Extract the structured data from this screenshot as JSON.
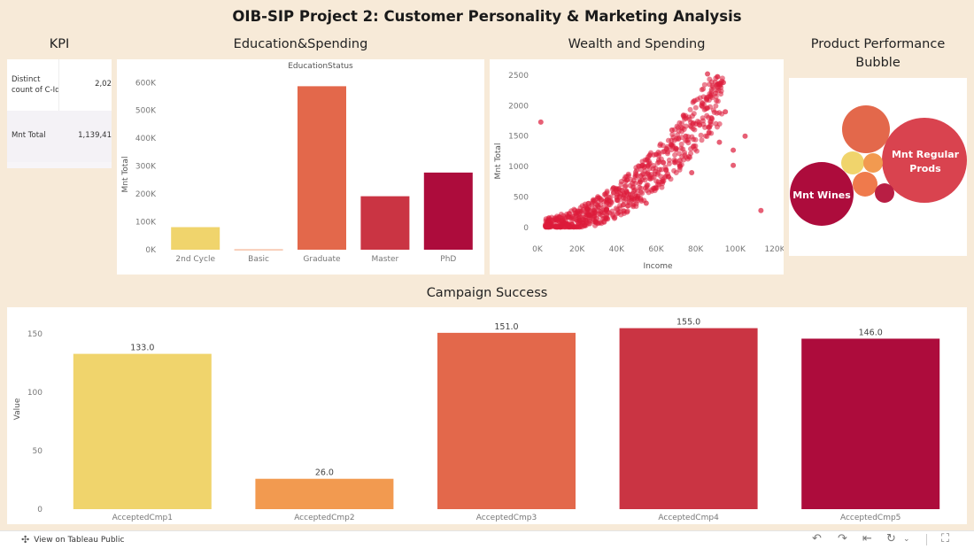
{
  "title": "OIB-SIP Project 2: Customer Personality & Marketing Analysis",
  "sections": {
    "kpi": "KPI",
    "education": "Education&Spending",
    "wealth": "Wealth and Spending",
    "product_line1": "Product Performance",
    "product_line2": "Bubble",
    "campaign": "Campaign Success"
  },
  "kpi": {
    "rows": [
      {
        "label_line1": "Distinct",
        "label_line2": "count of C-Id",
        "value": "2,02"
      },
      {
        "label_line1": "Mnt Total",
        "label_line2": "",
        "value": "1,139,41"
      }
    ]
  },
  "bubble": {
    "labels": {
      "wines": "Mnt Wines",
      "regular_line1": "Mnt Regular",
      "regular_line2": "Prods"
    }
  },
  "footer": {
    "tableau_link": "View on Tableau Public"
  },
  "colors": {
    "background": "#f7ead8",
    "yellow": "#f0d46c",
    "orange": "#f29a50",
    "coral": "#e3684b",
    "red": "#ca3443",
    "crimson": "#ad0c3c"
  },
  "chart_data": [
    {
      "type": "bar",
      "title": "EducationStatus",
      "categories": [
        "2nd Cycle",
        "Basic",
        "Graduate",
        "Master",
        "PhD"
      ],
      "values": [
        81000,
        2000,
        587000,
        192000,
        277000
      ],
      "ylabel": "Mnt Total",
      "yticks": [
        "0K",
        "100K",
        "200K",
        "300K",
        "400K",
        "500K",
        "600K"
      ],
      "ylim": [
        0,
        620000
      ]
    },
    {
      "type": "scatter",
      "xlabel": "Income",
      "ylabel": "Mnt Total",
      "xticks": [
        "0K",
        "20K",
        "40K",
        "60K",
        "80K",
        "100K",
        "120K"
      ],
      "yticks": [
        "0",
        "500",
        "1000",
        "1500",
        "2000",
        "2500"
      ],
      "xlim": [
        0,
        120000
      ],
      "ylim": [
        0,
        2600
      ],
      "points": [
        [
          1700,
          1730
        ],
        [
          105000,
          1500
        ],
        [
          113000,
          280
        ],
        [
          99000,
          1270
        ],
        [
          99000,
          1020
        ],
        [
          86000,
          2520
        ],
        [
          94000,
          2380
        ],
        [
          5000,
          30
        ],
        [
          10000,
          120
        ],
        [
          15000,
          60
        ],
        [
          22000,
          90
        ],
        [
          30000,
          150
        ],
        [
          45000,
          600
        ],
        [
          52000,
          750
        ],
        [
          65000,
          950
        ],
        [
          70000,
          1300
        ],
        [
          75000,
          1500
        ],
        [
          80000,
          1700
        ],
        [
          83000,
          2000
        ],
        [
          90000,
          2200
        ],
        [
          60000,
          1200
        ],
        [
          55000,
          400
        ],
        [
          35000,
          300
        ],
        [
          40000,
          500
        ],
        [
          78000,
          900
        ],
        [
          72000,
          1100
        ],
        [
          68000,
          1600
        ],
        [
          88000,
          1800
        ],
        [
          95000,
          1900
        ],
        [
          92000,
          1400
        ]
      ]
    },
    {
      "type": "bar",
      "categories": [
        "AcceptedCmp1",
        "AcceptedCmp2",
        "AcceptedCmp3",
        "AcceptedCmp4",
        "AcceptedCmp5"
      ],
      "values": [
        133.0,
        26.0,
        151.0,
        155.0,
        146.0
      ],
      "data_labels": [
        "133.0",
        "26.0",
        "151.0",
        "155.0",
        "146.0"
      ],
      "ylabel": "Value",
      "yticks": [
        "0",
        "50",
        "100",
        "150"
      ],
      "ylim": [
        0,
        160
      ]
    }
  ]
}
